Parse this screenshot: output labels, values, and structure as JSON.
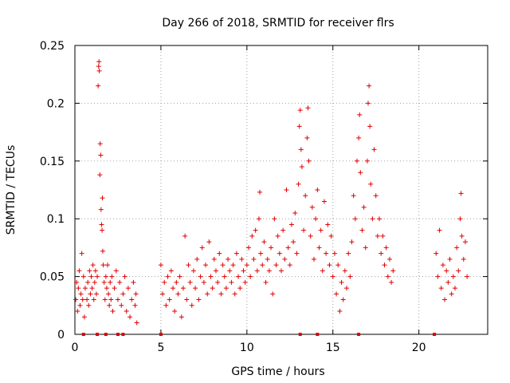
{
  "chart_data": {
    "type": "scatter",
    "title": "Day 266 of 2018, SRMTID for receiver flrs",
    "xlabel": "GPS time / hours",
    "ylabel": "SRMTID / TECUs",
    "xlim": [
      0,
      24
    ],
    "ylim": [
      0,
      0.25
    ],
    "x_ticks": [
      0,
      5,
      10,
      15,
      20
    ],
    "x_tick_labels": [
      "0",
      "5",
      "10",
      "15",
      "20"
    ],
    "y_ticks": [
      0,
      0.05,
      0.1,
      0.15,
      0.2,
      0.25
    ],
    "y_tick_labels": [
      "0",
      "0.05",
      "0.1",
      "0.15",
      "0.2",
      "0.25"
    ],
    "grid": true,
    "marker": "+",
    "color": "#e00000",
    "series": [
      {
        "points": [
          [
            0.05,
            0.03
          ],
          [
            0.1,
            0.045
          ],
          [
            0.15,
            0.02
          ],
          [
            0.2,
            0.04
          ],
          [
            0.25,
            0.055
          ],
          [
            0.3,
            0.025
          ],
          [
            0.35,
            0.035
          ],
          [
            0.4,
            0.07
          ],
          [
            0.45,
            0.03
          ],
          [
            0.5,
            0.05
          ],
          [
            0.55,
            0.015
          ],
          [
            0.6,
            0.04
          ],
          [
            0.7,
            0.03
          ],
          [
            0.75,
            0.045
          ],
          [
            0.8,
            0.025
          ],
          [
            0.85,
            0.055
          ],
          [
            0.9,
            0.035
          ],
          [
            0.95,
            0.05
          ],
          [
            1.0,
            0.04
          ],
          [
            1.05,
            0.06
          ],
          [
            1.1,
            0.03
          ],
          [
            1.15,
            0.045
          ],
          [
            1.2,
            0.055
          ],
          [
            1.25,
            0.035
          ],
          [
            1.3,
            0.05
          ],
          [
            1.35,
            0.215
          ],
          [
            1.38,
            0.232
          ],
          [
            1.4,
            0.236
          ],
          [
            1.42,
            0.228
          ],
          [
            1.45,
            0.138
          ],
          [
            1.47,
            0.165
          ],
          [
            1.5,
            0.155
          ],
          [
            1.52,
            0.108
          ],
          [
            1.55,
            0.095
          ],
          [
            1.58,
            0.09
          ],
          [
            1.6,
            0.118
          ],
          [
            1.62,
            0.072
          ],
          [
            1.65,
            0.06
          ],
          [
            1.7,
            0.045
          ],
          [
            1.75,
            0.03
          ],
          [
            1.8,
            0.05
          ],
          [
            1.85,
            0.04
          ],
          [
            1.9,
            0.06
          ],
          [
            1.95,
            0.035
          ],
          [
            2.0,
            0.025
          ],
          [
            2.05,
            0.045
          ],
          [
            2.1,
            0.03
          ],
          [
            2.15,
            0.05
          ],
          [
            2.2,
            0.02
          ],
          [
            2.3,
            0.04
          ],
          [
            2.4,
            0.055
          ],
          [
            2.5,
            0.03
          ],
          [
            2.6,
            0.045
          ],
          [
            2.7,
            0.025
          ],
          [
            2.8,
            0.035
          ],
          [
            2.9,
            0.05
          ],
          [
            3.0,
            0.02
          ],
          [
            3.1,
            0.04
          ],
          [
            3.2,
            0.015
          ],
          [
            3.3,
            0.03
          ],
          [
            3.4,
            0.045
          ],
          [
            3.5,
            0.025
          ],
          [
            3.55,
            0.035
          ],
          [
            3.6,
            0.01
          ],
          [
            5.0,
            0.06
          ],
          [
            5.1,
            0.035
          ],
          [
            5.2,
            0.045
          ],
          [
            5.3,
            0.025
          ],
          [
            5.4,
            0.05
          ],
          [
            5.5,
            0.03
          ],
          [
            5.6,
            0.055
          ],
          [
            5.7,
            0.04
          ],
          [
            5.8,
            0.02
          ],
          [
            5.9,
            0.045
          ],
          [
            6.0,
            0.035
          ],
          [
            6.1,
            0.05
          ],
          [
            6.2,
            0.015
          ],
          [
            6.3,
            0.04
          ],
          [
            6.4,
            0.085
          ],
          [
            6.5,
            0.03
          ],
          [
            6.6,
            0.06
          ],
          [
            6.7,
            0.045
          ],
          [
            6.8,
            0.025
          ],
          [
            6.9,
            0.055
          ],
          [
            7.0,
            0.04
          ],
          [
            7.1,
            0.065
          ],
          [
            7.2,
            0.03
          ],
          [
            7.3,
            0.05
          ],
          [
            7.4,
            0.075
          ],
          [
            7.5,
            0.045
          ],
          [
            7.6,
            0.06
          ],
          [
            7.7,
            0.035
          ],
          [
            7.8,
            0.08
          ],
          [
            7.9,
            0.05
          ],
          [
            8.0,
            0.04
          ],
          [
            8.1,
            0.065
          ],
          [
            8.2,
            0.055
          ],
          [
            8.3,
            0.045
          ],
          [
            8.4,
            0.07
          ],
          [
            8.5,
            0.035
          ],
          [
            8.6,
            0.06
          ],
          [
            8.7,
            0.05
          ],
          [
            8.8,
            0.04
          ],
          [
            8.9,
            0.065
          ],
          [
            9.0,
            0.055
          ],
          [
            9.1,
            0.045
          ],
          [
            9.2,
            0.06
          ],
          [
            9.3,
            0.035
          ],
          [
            9.4,
            0.07
          ],
          [
            9.5,
            0.05
          ],
          [
            9.6,
            0.04
          ],
          [
            9.7,
            0.065
          ],
          [
            9.8,
            0.055
          ],
          [
            9.9,
            0.045
          ],
          [
            10.0,
            0.06
          ],
          [
            10.1,
            0.075
          ],
          [
            10.2,
            0.05
          ],
          [
            10.3,
            0.085
          ],
          [
            10.4,
            0.065
          ],
          [
            10.5,
            0.09
          ],
          [
            10.6,
            0.055
          ],
          [
            10.7,
            0.1
          ],
          [
            10.75,
            0.123
          ],
          [
            10.8,
            0.07
          ],
          [
            10.9,
            0.06
          ],
          [
            11.0,
            0.08
          ],
          [
            11.1,
            0.045
          ],
          [
            11.2,
            0.065
          ],
          [
            11.3,
            0.055
          ],
          [
            11.4,
            0.075
          ],
          [
            11.5,
            0.035
          ],
          [
            11.6,
            0.1
          ],
          [
            11.7,
            0.06
          ],
          [
            11.8,
            0.085
          ],
          [
            11.9,
            0.07
          ],
          [
            12.0,
            0.055
          ],
          [
            12.1,
            0.09
          ],
          [
            12.2,
            0.065
          ],
          [
            12.3,
            0.125
          ],
          [
            12.4,
            0.075
          ],
          [
            12.5,
            0.06
          ],
          [
            12.6,
            0.095
          ],
          [
            12.7,
            0.08
          ],
          [
            12.8,
            0.105
          ],
          [
            12.9,
            0.07
          ],
          [
            13.0,
            0.13
          ],
          [
            13.05,
            0.18
          ],
          [
            13.1,
            0.194
          ],
          [
            13.15,
            0.16
          ],
          [
            13.2,
            0.145
          ],
          [
            13.3,
            0.09
          ],
          [
            13.4,
            0.12
          ],
          [
            13.5,
            0.17
          ],
          [
            13.55,
            0.196
          ],
          [
            13.6,
            0.15
          ],
          [
            13.7,
            0.085
          ],
          [
            13.8,
            0.11
          ],
          [
            13.9,
            0.065
          ],
          [
            14.0,
            0.1
          ],
          [
            14.1,
            0.125
          ],
          [
            14.2,
            0.075
          ],
          [
            14.3,
            0.09
          ],
          [
            14.4,
            0.055
          ],
          [
            14.5,
            0.115
          ],
          [
            14.6,
            0.07
          ],
          [
            14.7,
            0.095
          ],
          [
            14.8,
            0.06
          ],
          [
            14.9,
            0.085
          ],
          [
            15.0,
            0.05
          ],
          [
            15.1,
            0.07
          ],
          [
            15.2,
            0.035
          ],
          [
            15.3,
            0.06
          ],
          [
            15.4,
            0.02
          ],
          [
            15.5,
            0.045
          ],
          [
            15.6,
            0.03
          ],
          [
            15.7,
            0.055
          ],
          [
            15.8,
            0.04
          ],
          [
            15.9,
            0.07
          ],
          [
            16.0,
            0.05
          ],
          [
            16.1,
            0.08
          ],
          [
            16.2,
            0.12
          ],
          [
            16.3,
            0.1
          ],
          [
            16.4,
            0.15
          ],
          [
            16.5,
            0.17
          ],
          [
            16.55,
            0.19
          ],
          [
            16.6,
            0.14
          ],
          [
            16.7,
            0.09
          ],
          [
            16.8,
            0.11
          ],
          [
            16.9,
            0.075
          ],
          [
            17.0,
            0.15
          ],
          [
            17.05,
            0.2
          ],
          [
            17.1,
            0.215
          ],
          [
            17.15,
            0.18
          ],
          [
            17.2,
            0.13
          ],
          [
            17.3,
            0.1
          ],
          [
            17.4,
            0.16
          ],
          [
            17.5,
            0.12
          ],
          [
            17.6,
            0.085
          ],
          [
            17.7,
            0.1
          ],
          [
            17.8,
            0.07
          ],
          [
            17.9,
            0.085
          ],
          [
            18.0,
            0.06
          ],
          [
            18.1,
            0.075
          ],
          [
            18.2,
            0.05
          ],
          [
            18.3,
            0.065
          ],
          [
            18.4,
            0.045
          ],
          [
            18.5,
            0.055
          ],
          [
            21.0,
            0.07
          ],
          [
            21.1,
            0.05
          ],
          [
            21.2,
            0.09
          ],
          [
            21.3,
            0.04
          ],
          [
            21.4,
            0.06
          ],
          [
            21.5,
            0.03
          ],
          [
            21.6,
            0.055
          ],
          [
            21.7,
            0.045
          ],
          [
            21.8,
            0.065
          ],
          [
            21.9,
            0.035
          ],
          [
            22.0,
            0.05
          ],
          [
            22.1,
            0.04
          ],
          [
            22.2,
            0.075
          ],
          [
            22.3,
            0.055
          ],
          [
            22.4,
            0.1
          ],
          [
            22.45,
            0.122
          ],
          [
            22.5,
            0.085
          ],
          [
            22.6,
            0.065
          ],
          [
            22.7,
            0.08
          ],
          [
            22.8,
            0.05
          ]
        ]
      }
    ],
    "zero_markers_x": [
      0.5,
      1.3,
      1.8,
      2.5,
      2.8,
      5.0,
      13.1,
      14.1,
      16.5,
      20.9
    ]
  }
}
